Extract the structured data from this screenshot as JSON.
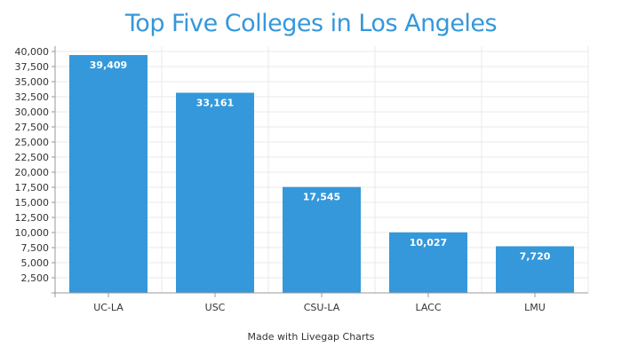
{
  "colors": {
    "accent": "#3498db",
    "title": "#3498db",
    "bar_label": "#ffffff",
    "tick_text": "#333333",
    "axis": "#999999",
    "grid": "#e8e8e8"
  },
  "footer": {
    "note": "Made with Livegap Charts"
  },
  "chart_data": {
    "type": "bar",
    "title": "Top Five Colleges in Los Angeles",
    "xlabel": "",
    "ylabel": "",
    "categories": [
      "UC-LA",
      "USC",
      "CSU-LA",
      "LACC",
      "LMU"
    ],
    "values": [
      39409,
      33161,
      17545,
      10027,
      7720
    ],
    "data_labels": [
      "39,409",
      "33,161",
      "17,545",
      "10,027",
      "7,720"
    ],
    "ylim": [
      0,
      40000
    ],
    "y_ticks": [
      2500,
      5000,
      7500,
      10000,
      12500,
      15000,
      17500,
      20000,
      22500,
      25000,
      27500,
      30000,
      32500,
      35000,
      37500,
      40000
    ],
    "y_tick_labels": [
      "2,500",
      "5,000",
      "7,500",
      "10,000",
      "12,500",
      "15,000",
      "17,500",
      "20,000",
      "22,500",
      "25,000",
      "27,500",
      "30,000",
      "32,500",
      "35,000",
      "37,500",
      "40,000"
    ],
    "grid": true,
    "legend": "none"
  }
}
